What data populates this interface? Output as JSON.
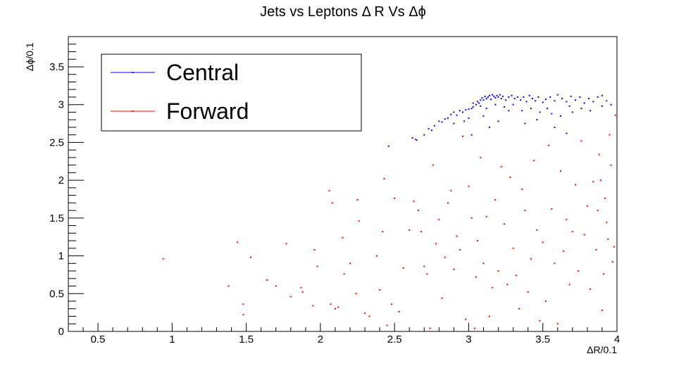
{
  "chart_data": {
    "type": "scatter",
    "title": "Jets vs Leptons Δ R Vs Δϕ",
    "xlabel": "ΔR/0.1",
    "ylabel": "Δϕ/0.1",
    "xlim": [
      0.3,
      4.0
    ],
    "ylim": [
      0,
      3.9
    ],
    "x_ticks": [
      0.5,
      1,
      1.5,
      2,
      2.5,
      3,
      3.5,
      4
    ],
    "x_tick_labels": [
      "0.5",
      "1",
      "1.5",
      "2",
      "2.5",
      "3",
      "3.5",
      "4"
    ],
    "y_ticks": [
      0,
      0.5,
      1,
      1.5,
      2,
      2.5,
      3,
      3.5
    ],
    "y_tick_labels": [
      "0",
      "0.5",
      "1",
      "1.5",
      "2",
      "2.5",
      "3",
      "3.5"
    ],
    "grid": false,
    "legend_position": "top-left",
    "series": [
      {
        "name": "Central",
        "color": "#0000ff",
        "points": [
          [
            2.46,
            2.45
          ],
          [
            2.62,
            2.56
          ],
          [
            2.65,
            2.53
          ],
          [
            2.7,
            2.6
          ],
          [
            2.73,
            2.68
          ],
          [
            2.75,
            2.66
          ],
          [
            2.77,
            2.72
          ],
          [
            2.8,
            2.78
          ],
          [
            2.82,
            2.77
          ],
          [
            2.84,
            2.81
          ],
          [
            2.86,
            2.82
          ],
          [
            2.88,
            2.87
          ],
          [
            2.9,
            2.9
          ],
          [
            2.92,
            2.86
          ],
          [
            2.94,
            2.92
          ],
          [
            2.96,
            2.9
          ],
          [
            2.98,
            2.93
          ],
          [
            3.0,
            2.94
          ],
          [
            3.02,
            2.95
          ],
          [
            3.03,
            2.97
          ],
          [
            3.05,
            3.0
          ],
          [
            3.06,
            3.04
          ],
          [
            3.07,
            3.02
          ],
          [
            3.08,
            3.06
          ],
          [
            3.09,
            3.09
          ],
          [
            3.1,
            3.06
          ],
          [
            3.11,
            3.11
          ],
          [
            3.12,
            3.08
          ],
          [
            3.13,
            3.1
          ],
          [
            3.14,
            3.12
          ],
          [
            3.15,
            3.07
          ],
          [
            3.16,
            3.13
          ],
          [
            3.17,
            3.11
          ],
          [
            3.18,
            3.09
          ],
          [
            3.19,
            3.12
          ],
          [
            3.2,
            3.1
          ],
          [
            3.21,
            3.13
          ],
          [
            3.22,
            3.08
          ],
          [
            3.23,
            3.11
          ],
          [
            3.25,
            3.06
          ],
          [
            3.27,
            3.1
          ],
          [
            3.29,
            3.12
          ],
          [
            3.31,
            3.08
          ],
          [
            3.33,
            3.1
          ],
          [
            3.35,
            3.06
          ],
          [
            3.37,
            3.1
          ],
          [
            3.39,
            3.04
          ],
          [
            3.41,
            3.12
          ],
          [
            3.43,
            3.08
          ],
          [
            3.45,
            3.05
          ],
          [
            3.47,
            3.1
          ],
          [
            3.5,
            3.03
          ],
          [
            3.52,
            3.07
          ],
          [
            3.55,
            3.1
          ],
          [
            3.58,
            3.05
          ],
          [
            3.6,
            3.13
          ],
          [
            3.63,
            3.08
          ],
          [
            3.66,
            3.04
          ],
          [
            3.69,
            3.11
          ],
          [
            3.72,
            3.06
          ],
          [
            3.75,
            3.1
          ],
          [
            3.78,
            3.02
          ],
          [
            3.81,
            3.08
          ],
          [
            3.84,
            3.04
          ],
          [
            3.87,
            3.1
          ],
          [
            3.9,
            3.12
          ],
          [
            3.93,
            3.05
          ],
          [
            3.96,
            3.0
          ],
          [
            3.03,
            3.02
          ],
          [
            3.08,
            2.98
          ],
          [
            3.12,
            2.95
          ],
          [
            3.18,
            3.0
          ],
          [
            3.24,
            2.97
          ],
          [
            3.3,
            3.0
          ],
          [
            3.36,
            2.92
          ],
          [
            3.42,
            2.95
          ],
          [
            3.48,
            2.9
          ],
          [
            3.56,
            2.88
          ],
          [
            3.62,
            2.85
          ],
          [
            3.7,
            2.9
          ],
          [
            3.76,
            2.95
          ],
          [
            3.82,
            2.92
          ],
          [
            3.9,
            2.98
          ],
          [
            2.9,
            2.75
          ],
          [
            3.0,
            2.82
          ],
          [
            3.1,
            2.85
          ],
          [
            3.2,
            2.78
          ],
          [
            3.38,
            2.75
          ],
          [
            3.46,
            2.8
          ],
          [
            3.58,
            2.7
          ],
          [
            3.66,
            2.62
          ],
          [
            3.02,
            2.6
          ],
          [
            3.14,
            2.7
          ],
          [
            2.97,
            2.78
          ],
          [
            3.27,
            2.92
          ],
          [
            3.53,
            2.95
          ],
          [
            3.68,
            2.98
          ]
        ]
      },
      {
        "name": "Forward",
        "color": "#ff0000",
        "points": [
          [
            0.94,
            0.96
          ],
          [
            1.38,
            0.6
          ],
          [
            1.44,
            1.18
          ],
          [
            1.48,
            0.36
          ],
          [
            1.48,
            0.22
          ],
          [
            1.53,
            0.98
          ],
          [
            1.64,
            0.68
          ],
          [
            1.7,
            0.6
          ],
          [
            1.77,
            1.16
          ],
          [
            1.8,
            0.46
          ],
          [
            1.87,
            0.58
          ],
          [
            1.88,
            0.52
          ],
          [
            1.95,
            0.34
          ],
          [
            1.96,
            1.08
          ],
          [
            1.98,
            0.86
          ],
          [
            2.06,
            1.86
          ],
          [
            2.07,
            0.36
          ],
          [
            2.08,
            1.7
          ],
          [
            2.1,
            0.3
          ],
          [
            2.12,
            0.32
          ],
          [
            2.15,
            1.24
          ],
          [
            2.16,
            0.76
          ],
          [
            2.2,
            0.9
          ],
          [
            2.24,
            0.5
          ],
          [
            2.25,
            1.74
          ],
          [
            2.26,
            1.46
          ],
          [
            2.3,
            0.24
          ],
          [
            2.33,
            0.2
          ],
          [
            2.38,
            1.0
          ],
          [
            2.4,
            0.55
          ],
          [
            2.42,
            1.32
          ],
          [
            2.43,
            2.02
          ],
          [
            2.45,
            0.08
          ],
          [
            2.48,
            0.36
          ],
          [
            2.5,
            1.76
          ],
          [
            2.53,
            0.26
          ],
          [
            2.56,
            0.84
          ],
          [
            2.6,
            1.34
          ],
          [
            2.63,
            1.72
          ],
          [
            2.64,
            2.54
          ],
          [
            2.66,
            1.6
          ],
          [
            2.68,
            1.32
          ],
          [
            2.7,
            0.86
          ],
          [
            2.72,
            0.76
          ],
          [
            2.74,
            0.04
          ],
          [
            2.76,
            2.2
          ],
          [
            2.78,
            1.16
          ],
          [
            2.8,
            1.48
          ],
          [
            2.82,
            0.44
          ],
          [
            2.84,
            0.98
          ],
          [
            2.86,
            1.7
          ],
          [
            2.88,
            1.86
          ],
          [
            2.9,
            0.82
          ],
          [
            2.92,
            1.26
          ],
          [
            2.94,
            1.08
          ],
          [
            2.96,
            2.58
          ],
          [
            2.98,
            0.16
          ],
          [
            3.0,
            1.92
          ],
          [
            3.02,
            1.5
          ],
          [
            3.04,
            0.04
          ],
          [
            3.05,
            0.72
          ],
          [
            3.06,
            1.2
          ],
          [
            3.08,
            2.3
          ],
          [
            3.1,
            0.9
          ],
          [
            3.12,
            1.52
          ],
          [
            3.14,
            0.2
          ],
          [
            3.16,
            0.58
          ],
          [
            3.18,
            1.74
          ],
          [
            3.2,
            0.8
          ],
          [
            3.22,
            2.18
          ],
          [
            3.24,
            1.42
          ],
          [
            3.26,
            0.62
          ],
          [
            3.28,
            2.04
          ],
          [
            3.3,
            1.1
          ],
          [
            3.32,
            0.74
          ],
          [
            3.34,
            0.3
          ],
          [
            3.36,
            1.88
          ],
          [
            3.38,
            1.6
          ],
          [
            3.4,
            0.52
          ],
          [
            3.42,
            0.96
          ],
          [
            3.44,
            2.26
          ],
          [
            3.46,
            1.34
          ],
          [
            3.48,
            0.14
          ],
          [
            3.5,
            1.18
          ],
          [
            3.52,
            0.4
          ],
          [
            3.54,
            2.46
          ],
          [
            3.56,
            1.62
          ],
          [
            3.58,
            0.9
          ],
          [
            3.6,
            0.1
          ],
          [
            3.62,
            2.12
          ],
          [
            3.64,
            1.06
          ],
          [
            3.66,
            1.48
          ],
          [
            3.68,
            0.62
          ],
          [
            3.7,
            1.32
          ],
          [
            3.72,
            1.94
          ],
          [
            3.74,
            0.8
          ],
          [
            3.76,
            2.52
          ],
          [
            3.78,
            1.28
          ],
          [
            3.8,
            1.66
          ],
          [
            3.82,
            0.56
          ],
          [
            3.84,
            1.98
          ],
          [
            3.86,
            1.08
          ],
          [
            3.88,
            2.34
          ],
          [
            3.9,
            0.28
          ],
          [
            3.92,
            1.76
          ],
          [
            3.94,
            1.22
          ],
          [
            3.96,
            2.2
          ],
          [
            3.98,
            1.12
          ],
          [
            3.99,
            2.86
          ],
          [
            3.97,
            0.92
          ],
          [
            3.95,
            2.6
          ],
          [
            3.93,
            1.44
          ],
          [
            3.91,
            0.76
          ],
          [
            3.89,
            2.0
          ],
          [
            3.87,
            1.6
          ]
        ]
      }
    ]
  }
}
